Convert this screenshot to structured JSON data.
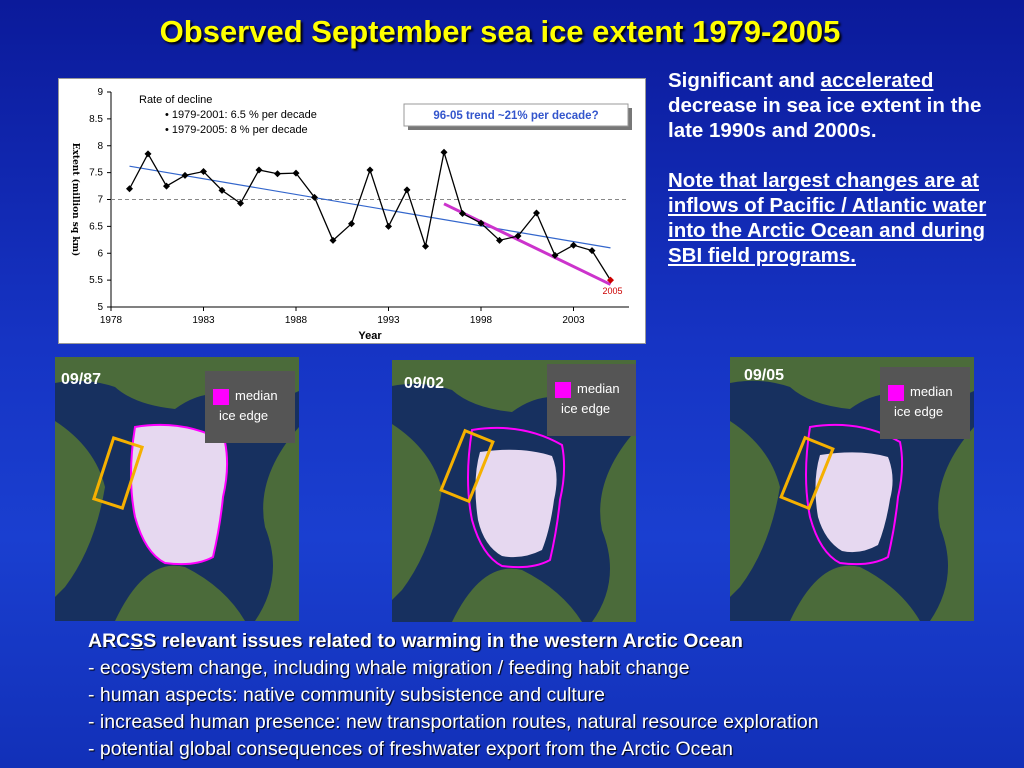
{
  "title": "Observed September sea ice extent 1979-2005",
  "chart_data": {
    "type": "line",
    "xlabel": "Year",
    "ylabel": "Extent (million sq km)",
    "xlim": [
      1978,
      2006
    ],
    "ylim": [
      5,
      9
    ],
    "xticks": [
      1978,
      1983,
      1988,
      1993,
      1998,
      2003
    ],
    "yticks": [
      5,
      5.5,
      6,
      6.5,
      7,
      7.5,
      8,
      8.5,
      9
    ],
    "series": [
      {
        "x": [
          1979,
          1980,
          1981,
          1982,
          1983,
          1984,
          1985,
          1986,
          1987,
          1988,
          1989,
          1990,
          1991,
          1992,
          1993,
          1994,
          1995,
          1996,
          1997,
          1998,
          1999,
          2000,
          2001,
          2002,
          2003,
          2004,
          2005
        ],
        "values": [
          7.2,
          7.85,
          7.25,
          7.45,
          7.52,
          7.17,
          6.93,
          7.55,
          7.48,
          7.49,
          7.04,
          6.24,
          6.55,
          7.55,
          6.5,
          7.18,
          6.13,
          7.88,
          6.74,
          6.56,
          6.24,
          6.32,
          6.75,
          5.96,
          6.15,
          6.05,
          5.5
        ]
      }
    ],
    "trend_all": {
      "x": [
        1979,
        2005
      ],
      "y": [
        7.62,
        6.1
      ]
    },
    "trend_recent": {
      "x": [
        1996,
        2005
      ],
      "y": [
        6.92,
        5.42
      ]
    },
    "mean_line": 7.0,
    "annotation_rate_title": "Rate of decline",
    "annotation_rate_1": "• 1979-2001:  6.5 % per decade",
    "annotation_rate_2": "• 1979-2005:  8 % per decade",
    "trend_box_label": "96-05 trend ~21% per decade?",
    "point_label": "2005",
    "colors": {
      "data": "#000000",
      "trend_all": "#3366cc",
      "trend_recent": "#cc33cc",
      "mean": "#888888",
      "point_label": "#cc0000",
      "trend_box_text": "#3355cc"
    }
  },
  "right_text": {
    "p1_a": "Significant and ",
    "p1_b": "accelerated",
    "p1_c": " decrease in sea ice extent in the late 1990s and 2000s.",
    "p2": "Note that largest changes are at inflows of Pacific / Atlantic water into the Arctic Ocean and during SBI field programs."
  },
  "maps": [
    {
      "label": "09/87",
      "legend_1": "median",
      "legend_2": "ice edge"
    },
    {
      "label": "09/02",
      "legend_1": "median",
      "legend_2": "ice edge"
    },
    {
      "label": "09/05",
      "legend_1": "median",
      "legend_2": "ice edge"
    }
  ],
  "bottom": {
    "head_a": "ARC",
    "head_b": "S",
    "head_c": "S relevant issues related to warming in the western Arctic Ocean",
    "items": [
      "- ecosystem change, including whale migration / feeding habit change",
      "- human aspects: native community subsistence and culture",
      "- increased human presence: new transportation routes, natural resource exploration",
      "- potential global consequences of freshwater export from the Arctic Ocean"
    ]
  }
}
